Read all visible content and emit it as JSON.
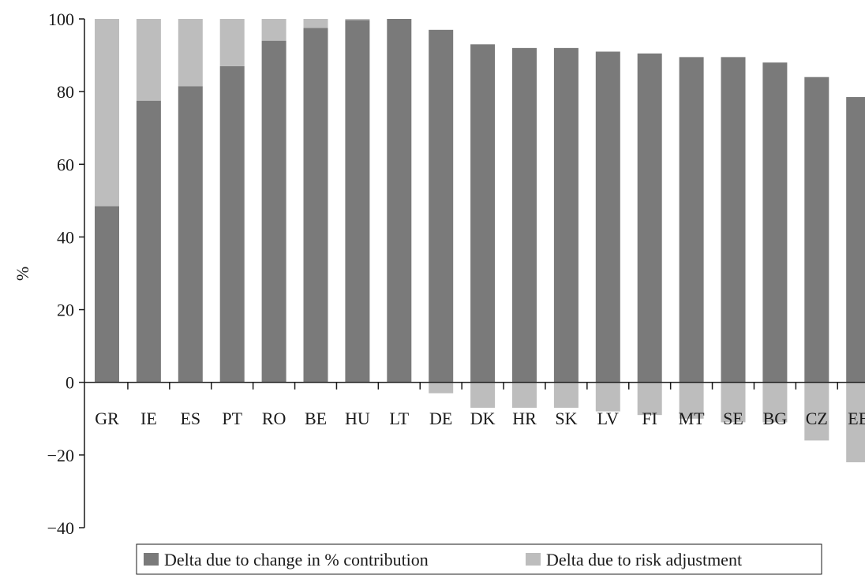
{
  "chart_data": {
    "type": "bar",
    "stacked": true,
    "categories": [
      "GR",
      "IE",
      "ES",
      "PT",
      "RO",
      "BE",
      "HU",
      "LT",
      "DE",
      "DK",
      "HR",
      "SK",
      "LV",
      "FI",
      "MT",
      "SE",
      "BG",
      "CZ",
      "EE"
    ],
    "series": [
      {
        "name": "Delta due to change in % contribution",
        "color": "#7a7a7a",
        "values": [
          48.5,
          77.5,
          81.5,
          87,
          94,
          97.5,
          99.7,
          100,
          97,
          93,
          92,
          92,
          91,
          90.5,
          89.5,
          89.5,
          88,
          84,
          78.5
        ]
      },
      {
        "name": "Delta due to risk adjustment",
        "color": "#bdbdbd",
        "values": [
          51.5,
          22.5,
          18.5,
          13,
          6,
          2.5,
          0.3,
          0,
          -3,
          -7,
          -7,
          -7,
          -8,
          -9,
          -10,
          -11,
          -11,
          -16,
          -22
        ]
      }
    ],
    "ylabel": "%",
    "ylim": [
      -40,
      100
    ],
    "yticks": [
      -40,
      -20,
      0,
      20,
      40,
      60,
      80,
      100
    ],
    "grid": false,
    "legend_position": "bottom"
  }
}
